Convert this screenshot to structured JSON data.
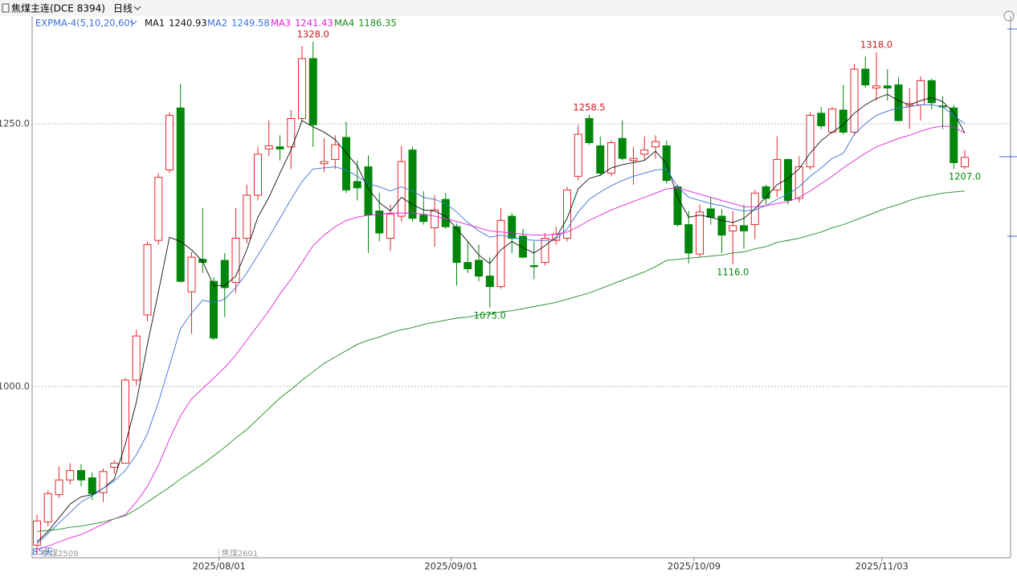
{
  "header": {
    "title": "焦煤主连(DCE 8394)",
    "period": "日线"
  },
  "chart_data": {
    "type": "candlestick",
    "indicator": "EXPMA-4(5,10,20,60)",
    "categories": [
      null,
      null,
      null,
      null,
      null,
      null,
      null,
      null,
      null,
      null,
      null,
      null,
      null,
      null,
      null,
      null,
      null,
      "2025/08/01",
      null,
      null,
      null,
      null,
      null,
      null,
      null,
      null,
      null,
      null,
      null,
      null,
      null,
      null,
      null,
      null,
      null,
      null,
      null,
      null,
      "2025/09/01",
      null,
      null,
      null,
      null,
      null,
      null,
      null,
      null,
      null,
      null,
      null,
      null,
      null,
      null,
      null,
      null,
      null,
      null,
      null,
      null,
      null,
      "2025/10/09",
      null,
      null,
      null,
      null,
      null,
      null,
      null,
      null,
      null,
      null,
      null,
      null,
      null,
      null,
      null,
      null,
      "2025/11/03",
      null,
      null,
      null,
      null,
      null,
      null,
      null
    ],
    "open": [
      849,
      871,
      897,
      911,
      920,
      913,
      899,
      923,
      927,
      1006,
      1068,
      1139,
      1206,
      1265,
      1090,
      1121,
      1100,
      1120,
      1099,
      1141,
      1182,
      1226,
      1228,
      1228,
      1255,
      1312,
      1212,
      1216,
      1237,
      1195,
      1209,
      1167,
      1141,
      1162,
      1225,
      1163,
      1151,
      1178,
      1152,
      1118,
      1120,
      1105,
      1095,
      1162,
      1143,
      1115,
      1118,
      1139,
      1141,
      1200,
      1255,
      1229,
      1203,
      1236,
      1215,
      1221,
      1228,
      1229,
      1190,
      1154,
      1126,
      1169,
      1162,
      1148,
      1153,
      1154,
      1190,
      1187,
      1216,
      1179,
      1209,
      1260,
      1242,
      1263,
      1242,
      1302,
      1284,
      1286,
      1287,
      1267,
      1268,
      1291,
      1267,
      1265,
      1209
    ],
    "high": [
      878,
      901,
      924,
      927,
      926,
      918,
      922,
      930,
      1008,
      1054,
      1138,
      1203,
      1261,
      1288,
      1128,
      1170,
      1104,
      1127,
      1170,
      1192,
      1228,
      1253,
      1239,
      1263,
      1324,
      1328,
      1236,
      1239,
      1252,
      1215,
      1220,
      1184,
      1173,
      1229,
      1228,
      1186,
      1182,
      1184,
      1155,
      1138,
      1135,
      1123,
      1170,
      1165,
      1150,
      1138,
      1146,
      1152,
      1190,
      1249,
      1258.5,
      1238,
      1234,
      1253,
      1228,
      1238,
      1239,
      1234,
      1192,
      1167,
      1173,
      1180,
      1169,
      1167,
      1173,
      1187,
      1192,
      1238,
      1217,
      1219,
      1261,
      1266,
      1266,
      1287,
      1307,
      1314,
      1318,
      1302,
      1294,
      1284,
      1295,
      1293,
      1276,
      1268,
      1225
    ],
    "low": [
      840,
      867,
      894,
      907,
      905,
      892,
      890,
      917,
      932,
      1001,
      1062,
      1135,
      1203,
      1099,
      1050,
      1108,
      1044,
      1066,
      1089,
      1136,
      1177,
      1219,
      1215,
      1207,
      1253,
      1228,
      1204,
      1207,
      1184,
      1177,
      1127,
      1138,
      1129,
      1157,
      1157,
      1154,
      1133,
      1150,
      1096,
      1108,
      1100,
      1075,
      1093,
      1127,
      1122,
      1102,
      1115,
      1135,
      1138,
      1196,
      1230,
      1200,
      1200,
      1215,
      1192,
      1215,
      1217,
      1193,
      1152,
      1117,
      1123,
      1154,
      1127,
      1116,
      1131,
      1140,
      1173,
      1180,
      1173,
      1175,
      1206,
      1245,
      1241,
      1240,
      1239,
      1284,
      1272,
      1272,
      1252,
      1245,
      1253,
      1264,
      1245,
      1207,
      1207
    ],
    "close": [
      872,
      898,
      911,
      920,
      911,
      898,
      919,
      927,
      1006,
      1048,
      1135,
      1199,
      1258,
      1100,
      1123,
      1118,
      1046,
      1094,
      1141,
      1182,
      1221,
      1229,
      1226,
      1255,
      1312,
      1249,
      1214,
      1230,
      1187,
      1189,
      1163,
      1146,
      1164,
      1214,
      1160,
      1157,
      1168,
      1152,
      1118,
      1112,
      1105,
      1095,
      1158,
      1141,
      1123,
      1114,
      1141,
      1145,
      1187,
      1240,
      1232,
      1203,
      1232,
      1217,
      1217,
      1225,
      1233,
      1196,
      1154,
      1127,
      1166,
      1161,
      1144,
      1153,
      1148,
      1184,
      1179,
      1216,
      1177,
      1209,
      1258,
      1248,
      1264,
      1242,
      1302,
      1287,
      1286,
      1284,
      1253,
      1269,
      1291,
      1270,
      1266,
      1213,
      1218
    ],
    "high_labels": [
      null,
      null,
      null,
      null,
      null,
      null,
      null,
      null,
      null,
      null,
      null,
      null,
      null,
      null,
      null,
      null,
      null,
      null,
      null,
      null,
      null,
      null,
      null,
      null,
      null,
      "1328.0",
      null,
      null,
      null,
      null,
      null,
      null,
      null,
      null,
      null,
      null,
      null,
      null,
      null,
      null,
      null,
      null,
      null,
      null,
      null,
      null,
      null,
      null,
      null,
      null,
      "1258.5",
      null,
      null,
      null,
      null,
      null,
      null,
      null,
      null,
      null,
      null,
      null,
      null,
      null,
      null,
      null,
      null,
      null,
      null,
      null,
      null,
      null,
      null,
      null,
      null,
      null,
      "1318.0",
      null,
      null,
      null,
      null,
      null,
      null,
      null,
      null
    ],
    "low_labels": [
      null,
      null,
      null,
      null,
      null,
      null,
      null,
      null,
      null,
      null,
      null,
      null,
      null,
      null,
      null,
      null,
      null,
      null,
      null,
      null,
      null,
      null,
      null,
      null,
      null,
      null,
      null,
      null,
      null,
      null,
      null,
      null,
      null,
      null,
      null,
      null,
      null,
      null,
      null,
      null,
      null,
      "1075.0",
      null,
      null,
      null,
      null,
      null,
      null,
      null,
      null,
      null,
      null,
      null,
      null,
      null,
      null,
      null,
      null,
      null,
      null,
      null,
      null,
      null,
      "1116.0",
      null,
      null,
      null,
      null,
      null,
      null,
      null,
      null,
      null,
      null,
      null,
      null,
      null,
      null,
      null,
      null,
      null,
      null,
      null,
      null,
      "1207.0"
    ],
    "up_color": "#e8262c",
    "down_color": "#00870a",
    "series": [
      {
        "name": "MA1",
        "legend_value": 1240.93,
        "color": "#111111",
        "values": [
          852,
          862,
          875,
          888,
          895,
          897,
          903,
          912,
          945,
          985,
          1040,
          1090,
          1142,
          1138,
          1130,
          1119,
          1096,
          1096,
          1105,
          1130,
          1161,
          1180,
          1203,
          1225,
          1253,
          1247,
          1242,
          1235,
          1222,
          1210,
          1188,
          1175,
          1167,
          1180,
          1173,
          1168,
          1167,
          1162,
          1150,
          1138,
          1125,
          1117,
          1130,
          1138,
          1132,
          1127,
          1134,
          1142,
          1160,
          1188,
          1198,
          1201,
          1208,
          1211,
          1213,
          1215,
          1224,
          1212,
          1180,
          1161,
          1163,
          1161,
          1158,
          1156,
          1160,
          1169,
          1180,
          1192,
          1198,
          1207,
          1222,
          1234,
          1242,
          1249,
          1260,
          1268,
          1274,
          1278,
          1272,
          1268,
          1272,
          1275,
          1271,
          1261,
          1241
        ]
      },
      {
        "name": "MA2",
        "legend_value": 1249.58,
        "color": "#3b6fd6",
        "values": [
          850,
          860,
          870,
          880,
          890,
          896,
          903,
          910,
          920,
          935,
          955,
          985,
          1020,
          1055,
          1070,
          1082,
          1080,
          1083,
          1094,
          1108,
          1125,
          1142,
          1160,
          1178,
          1195,
          1207,
          1208,
          1209,
          1206,
          1200,
          1193,
          1190,
          1186,
          1190,
          1186,
          1180,
          1178,
          1174,
          1166,
          1156,
          1148,
          1142,
          1144,
          1142,
          1140,
          1139,
          1139,
          1140,
          1150,
          1166,
          1178,
          1185,
          1191,
          1196,
          1200,
          1203,
          1206,
          1207,
          1190,
          1180,
          1177,
          1174,
          1172,
          1169,
          1167,
          1168,
          1172,
          1178,
          1183,
          1190,
          1200,
          1208,
          1217,
          1222,
          1240,
          1250,
          1258,
          1262,
          1265,
          1266,
          1268,
          1268,
          1266,
          1258,
          1250
        ]
      },
      {
        "name": "MA3",
        "legend_value": 1241.43,
        "color": "#e020d8",
        "values": [
          845,
          848,
          852,
          856,
          859,
          864,
          869,
          874,
          878,
          890,
          905,
          925,
          950,
          972,
          988,
          998,
          1008,
          1018,
          1030,
          1044,
          1058,
          1072,
          1088,
          1102,
          1118,
          1134,
          1144,
          1152,
          1158,
          1161,
          1163,
          1164,
          1165,
          1165,
          1165,
          1164,
          1162,
          1160,
          1157,
          1154,
          1151,
          1148,
          1147,
          1146,
          1145,
          1144,
          1144,
          1145,
          1147,
          1152,
          1158,
          1163,
          1168,
          1172,
          1176,
          1180,
          1184,
          1188,
          1189,
          1186,
          1183,
          1180,
          1177,
          1174,
          1171,
          1171,
          1172,
          1174,
          1176,
          1180,
          1186,
          1193,
          1200,
          1208,
          1215,
          1222,
          1228,
          1232,
          1236,
          1239,
          1243,
          1246,
          1248,
          1247,
          1241
        ]
      },
      {
        "name": "MA4",
        "legend_value": 1186.35,
        "color": "#1e8a1e",
        "values": [
          862,
          863,
          864,
          866,
          867,
          869,
          871,
          874,
          877,
          883,
          890,
          897,
          904,
          912,
          919,
          926,
          934,
          942,
          951,
          959,
          969,
          979,
          989,
          997,
          1006,
          1014,
          1022,
          1028,
          1034,
          1040,
          1044,
          1047,
          1051,
          1054,
          1056,
          1059,
          1061,
          1063,
          1065,
          1066,
          1068,
          1069,
          1071,
          1072,
          1074,
          1076,
          1078,
          1080,
          1083,
          1086,
          1089,
          1093,
          1097,
          1101,
          1105,
          1109,
          1114,
          1120,
          1121,
          1122,
          1123,
          1124,
          1125,
          1127,
          1128,
          1131,
          1133,
          1137,
          1139,
          1141,
          1144,
          1147,
          1151,
          1154,
          1158,
          1162,
          1166,
          1170,
          1173,
          1177,
          1180,
          1182,
          1184,
          1185,
          1186
        ]
      }
    ],
    "ylim": [
      837,
      1354
    ],
    "yticks": [
      {
        "value": 1000,
        "label": "1000.0"
      },
      {
        "value": 1250,
        "label": "1250.0"
      }
    ],
    "grid": true,
    "day_count_label": "85天",
    "contract_labels": [
      "焦煤2509",
      "焦煤2601"
    ]
  }
}
